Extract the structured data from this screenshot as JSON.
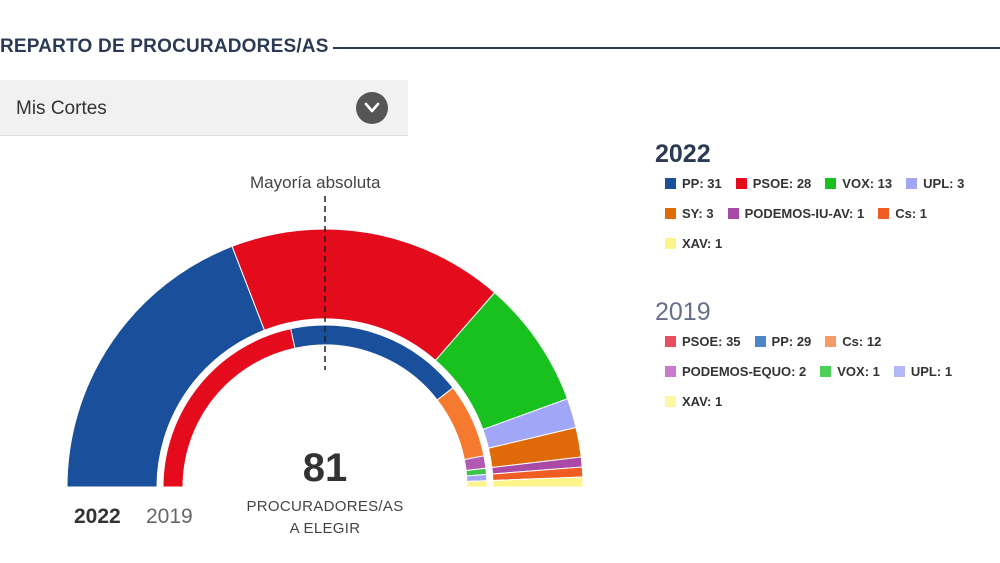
{
  "header": {
    "title": "REPARTO DE PROCURADORES/AS"
  },
  "selector": {
    "value": "Mis Cortes"
  },
  "annotations": {
    "majority": "Mayoría absoluta"
  },
  "center": {
    "total": "81",
    "label_line1": "PROCURADORES/AS",
    "label_line2": "A ELEGIR"
  },
  "tabs": {
    "active": "2022",
    "inactive": "2019"
  },
  "chart_data": {
    "type": "hemicycle",
    "total_seats": 81,
    "majority": 41,
    "series": [
      {
        "year": "2022",
        "ring": "outer",
        "parties": [
          {
            "name": "PP",
            "seats": 31,
            "color": "#1a4f9c"
          },
          {
            "name": "PSOE",
            "seats": 28,
            "color": "#e30b1c"
          },
          {
            "name": "VOX",
            "seats": 13,
            "color": "#19c11f"
          },
          {
            "name": "UPL",
            "seats": 3,
            "color": "#a2a6f6"
          },
          {
            "name": "SY",
            "seats": 3,
            "color": "#de6a08"
          },
          {
            "name": "PODEMOS-IU-AV",
            "seats": 1,
            "color": "#a94aa6"
          },
          {
            "name": "Cs",
            "seats": 1,
            "color": "#f05d23"
          },
          {
            "name": "XAV",
            "seats": 1,
            "color": "#fdf58c"
          }
        ]
      },
      {
        "year": "2019",
        "ring": "inner",
        "parties": [
          {
            "name": "PSOE",
            "seats": 35,
            "color": "#e30b1c"
          },
          {
            "name": "PP",
            "seats": 29,
            "color": "#1a4f9c"
          },
          {
            "name": "Cs",
            "seats": 12,
            "color": "#f57a2f"
          },
          {
            "name": "PODEMOS-EQUO",
            "seats": 2,
            "color": "#b05ab3"
          },
          {
            "name": "VOX",
            "seats": 1,
            "color": "#3cc34a"
          },
          {
            "name": "UPL",
            "seats": 1,
            "color": "#a2a6f6"
          },
          {
            "name": "XAV",
            "seats": 1,
            "color": "#fdf58c"
          }
        ]
      }
    ]
  },
  "legend": {
    "year_2022": "2022",
    "rows_2022": [
      [
        {
          "text": "PP: 31",
          "color": "#1a4f9c"
        },
        {
          "text": "PSOE: 28",
          "color": "#e30b1c"
        },
        {
          "text": "VOX: 13",
          "color": "#19c11f"
        },
        {
          "text": "UPL: 3",
          "color": "#a2a6f6"
        }
      ],
      [
        {
          "text": "SY: 3",
          "color": "#de6a08"
        },
        {
          "text": "PODEMOS-IU-AV: 1",
          "color": "#a94aa6"
        },
        {
          "text": "Cs: 1",
          "color": "#f05d23"
        }
      ],
      [
        {
          "text": "XAV: 1",
          "color": "#fdf58c"
        }
      ]
    ],
    "year_2019": "2019",
    "rows_2019": [
      [
        {
          "text": "PSOE: 35",
          "color": "#e8505f"
        },
        {
          "text": "PP: 29",
          "color": "#4c86c6"
        },
        {
          "text": "Cs: 12",
          "color": "#f79b6a"
        }
      ],
      [
        {
          "text": "PODEMOS-EQUO: 2",
          "color": "#c77bc8"
        },
        {
          "text": "VOX: 1",
          "color": "#4cd05a"
        },
        {
          "text": "UPL: 1",
          "color": "#b3b6f7"
        }
      ],
      [
        {
          "text": "XAV: 1",
          "color": "#fdf7a4"
        }
      ]
    ]
  }
}
